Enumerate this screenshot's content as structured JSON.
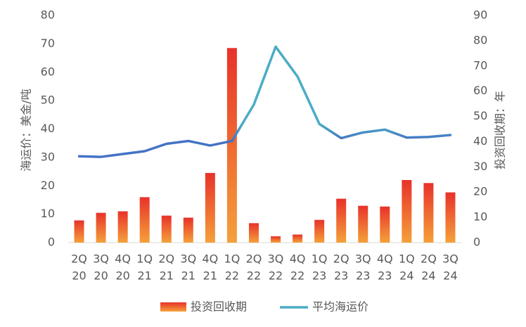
{
  "chart_data": {
    "type": "bar_line",
    "categories": [
      [
        "2Q",
        "20"
      ],
      [
        "3Q",
        "20"
      ],
      [
        "4Q",
        "20"
      ],
      [
        "1Q",
        "21"
      ],
      [
        "2Q",
        "21"
      ],
      [
        "3Q",
        "21"
      ],
      [
        "4Q",
        "21"
      ],
      [
        "1Q",
        "22"
      ],
      [
        "2Q",
        "22"
      ],
      [
        "3Q",
        "22"
      ],
      [
        "4Q",
        "22"
      ],
      [
        "1Q",
        "23"
      ],
      [
        "2Q",
        "23"
      ],
      [
        "3Q",
        "23"
      ],
      [
        "4Q",
        "23"
      ],
      [
        "1Q",
        "24"
      ],
      [
        "2Q",
        "24"
      ],
      [
        "3Q",
        "24"
      ]
    ],
    "y_label": "海运价：美金/吨",
    "y2_label": "投资回收期：年",
    "ylim": [
      0,
      80
    ],
    "yticks": [
      0,
      10,
      20,
      30,
      40,
      50,
      60,
      70,
      80
    ],
    "y2lim": [
      0,
      90
    ],
    "y2ticks": [
      0,
      10,
      20,
      30,
      40,
      50,
      60,
      70,
      80,
      90
    ],
    "series": [
      {
        "name": "投资回收期",
        "type": "bar",
        "axis": "y2",
        "color": "#e8322a",
        "values": [
          8.8,
          11.8,
          12.4,
          18,
          10.7,
          9.9,
          27.6,
          77.1,
          7.7,
          2.5,
          3.2,
          9,
          17.4,
          14.6,
          14.3,
          24.8,
          23.6,
          19.9
        ]
      },
      {
        "name": "平均海运价",
        "type": "line",
        "axis": "y",
        "color": "#4472c4",
        "values": [
          30.4,
          30.2,
          31.2,
          32.2,
          34.8,
          35.8,
          34.2,
          35.8,
          48.6,
          69,
          58.5,
          41.8,
          36.8,
          38.8,
          39.8,
          37,
          37.2,
          37.9
        ]
      }
    ]
  }
}
